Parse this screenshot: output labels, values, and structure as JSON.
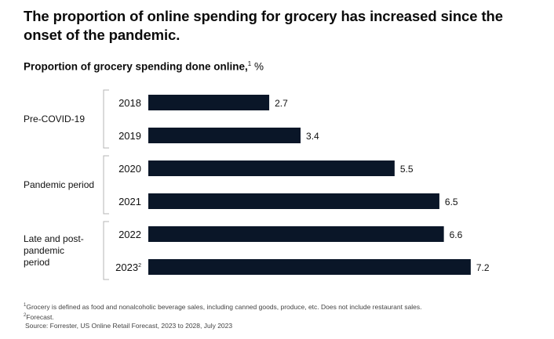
{
  "headline": "The proportion of online spending for grocery has increased since the onset of the pandemic.",
  "chart_data": {
    "type": "bar",
    "orientation": "horizontal",
    "title": "Proportion of grocery spending done online,",
    "title_footnote_mark": "1",
    "unit": "%",
    "categories": [
      "2018",
      "2019",
      "2020",
      "2021",
      "2022",
      "2023"
    ],
    "category_footnote_marks": [
      "",
      "",
      "",
      "",
      "",
      "2"
    ],
    "values": [
      2.7,
      3.4,
      5.5,
      6.5,
      6.6,
      7.2
    ],
    "data_labels": [
      "2.7",
      "3.4",
      "5.5",
      "6.5",
      "6.6",
      "7.2"
    ],
    "xlim": [
      0,
      7.5
    ],
    "grid": false,
    "groups": [
      {
        "label": "Pre-COVID-19",
        "categories": [
          "2018",
          "2019"
        ]
      },
      {
        "label": "Pandemic period",
        "categories": [
          "2020",
          "2021"
        ]
      },
      {
        "label": "Late and post-pandemic period",
        "categories": [
          "2022",
          "2023"
        ]
      }
    ],
    "bar_color": "#0a1628"
  },
  "footnotes": [
    {
      "mark": "1",
      "text": "Grocery is defined as food and nonalcoholic beverage sales, including canned goods, produce, etc. Does not include restaurant sales."
    },
    {
      "mark": "2",
      "text": "Forecast."
    }
  ],
  "source": "Source: Forrester, US Online Retail Forecast, 2023 to 2028, July 2023"
}
